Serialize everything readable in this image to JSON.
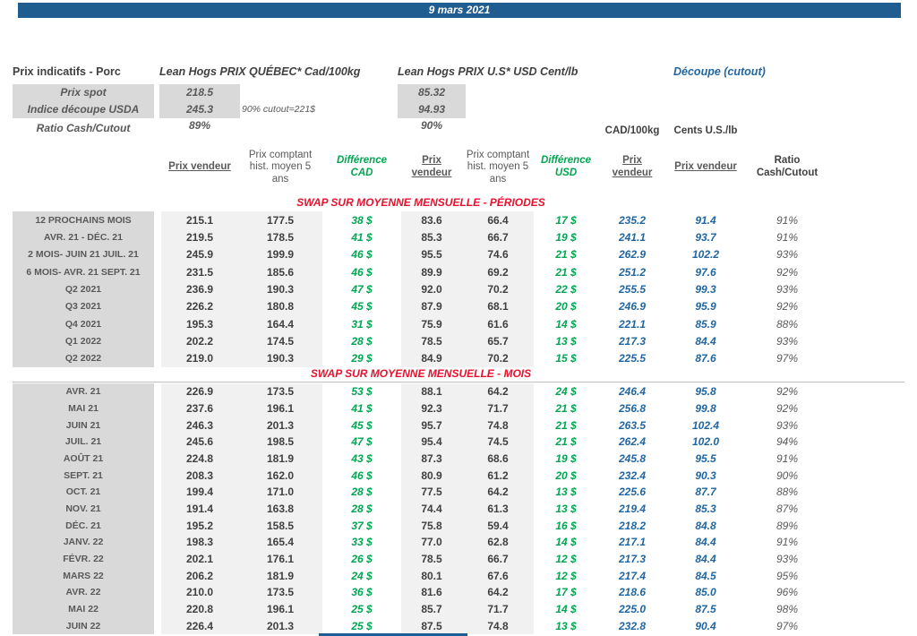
{
  "banner": {
    "date": "9 mars 2021"
  },
  "colors": {
    "banner_blue": "#1F5C8F",
    "diff_green": "#00A651",
    "cutout_blue": "#2166A0",
    "section_red": "#E8112D"
  },
  "summary": {
    "title": "Prix indicatifs - Porc",
    "quebec_title": "Lean Hogs PRIX QUÉBEC* Cad/100kg",
    "us_title": "Lean Hogs PRIX U.S* USD Cent/lb",
    "cutout_title": "Découpe (cutout)",
    "spot_label": "Prix spot",
    "spot_qc": "218.5",
    "spot_us": "85.32",
    "index_label": "Indice découpe USDA",
    "index_qc": "245.3",
    "index_us": "94.93",
    "cutout_note": "90% cutout=221$",
    "ratio_label": "Ratio Cash/Cutout",
    "ratio_qc": "89%",
    "ratio_us": "90%"
  },
  "table": {
    "group_headers": {
      "cad": "CAD/100kg",
      "us": "Cents U.S./lb"
    },
    "columns": [
      "Prix vendeur",
      "Prix comptant hist. moyen 5 ans",
      "Différence CAD",
      "Prix vendeur",
      "Prix comptant hist. moyen 5 ans",
      "Différence USD",
      "Prix vendeur",
      "Prix vendeur",
      "Ratio Cash/Cutout"
    ],
    "sections": [
      {
        "title": "SWAP SUR MOYENNE MENSUELLE - PÉRIODES",
        "rows": [
          [
            "12 PROCHAINS MOIS",
            "215.1",
            "177.5",
            "38 $",
            "83.6",
            "66.4",
            "17 $",
            "235.2",
            "91.4",
            "91%"
          ],
          [
            "AVR. 21 -  DÉC. 21",
            "219.5",
            "178.5",
            "41 $",
            "85.3",
            "66.7",
            "19 $",
            "241.1",
            "93.7",
            "91%"
          ],
          [
            "2 MOIS- JUIN 21 JUIL. 21",
            "245.9",
            "199.9",
            "46 $",
            "95.5",
            "74.6",
            "21 $",
            "262.9",
            "102.2",
            "93%"
          ],
          [
            "6 MOIS- AVR. 21 SEPT. 21",
            "231.5",
            "185.6",
            "46 $",
            "89.9",
            "69.2",
            "21 $",
            "251.2",
            "97.6",
            "92%"
          ],
          [
            "Q2 2021",
            "236.9",
            "190.3",
            "47 $",
            "92.0",
            "70.2",
            "22 $",
            "255.5",
            "99.3",
            "93%"
          ],
          [
            "Q3 2021",
            "226.2",
            "180.8",
            "45 $",
            "87.9",
            "68.1",
            "20 $",
            "246.9",
            "95.9",
            "92%"
          ],
          [
            "Q4 2021",
            "195.3",
            "164.4",
            "31 $",
            "75.9",
            "61.6",
            "14 $",
            "221.1",
            "85.9",
            "88%"
          ],
          [
            "Q1 2022",
            "202.2",
            "174.5",
            "28 $",
            "78.5",
            "65.7",
            "13 $",
            "217.3",
            "84.4",
            "93%"
          ],
          [
            "Q2 2022",
            "219.0",
            "190.3",
            "29 $",
            "84.9",
            "70.2",
            "15 $",
            "225.5",
            "87.6",
            "97%"
          ]
        ]
      },
      {
        "title": "SWAP SUR MOYENNE MENSUELLE - MOIS",
        "rows": [
          [
            "AVR. 21",
            "226.9",
            "173.5",
            "53 $",
            "88.1",
            "64.2",
            "24 $",
            "246.4",
            "95.8",
            "92%"
          ],
          [
            "MAI 21",
            "237.6",
            "196.1",
            "41 $",
            "92.3",
            "71.7",
            "21 $",
            "256.8",
            "99.8",
            "92%"
          ],
          [
            "JUIN 21",
            "246.3",
            "201.3",
            "45 $",
            "95.7",
            "74.8",
            "21 $",
            "263.5",
            "102.4",
            "93%"
          ],
          [
            "JUIL. 21",
            "245.6",
            "198.5",
            "47 $",
            "95.4",
            "74.5",
            "21 $",
            "262.4",
            "102.0",
            "94%"
          ],
          [
            "AOÛT 21",
            "224.8",
            "181.9",
            "43 $",
            "87.3",
            "68.6",
            "19 $",
            "245.8",
            "95.5",
            "91%"
          ],
          [
            "SEPT. 21",
            "208.3",
            "162.0",
            "46 $",
            "80.9",
            "61.2",
            "20 $",
            "232.4",
            "90.3",
            "90%"
          ],
          [
            "OCT. 21",
            "199.4",
            "171.0",
            "28 $",
            "77.5",
            "64.2",
            "13 $",
            "225.6",
            "87.7",
            "88%"
          ],
          [
            "NOV. 21",
            "191.4",
            "163.8",
            "28 $",
            "74.4",
            "61.3",
            "13 $",
            "219.4",
            "85.3",
            "87%"
          ],
          [
            "DÉC. 21",
            "195.2",
            "158.5",
            "37 $",
            "75.8",
            "59.4",
            "16 $",
            "218.2",
            "84.8",
            "89%"
          ],
          [
            "JANV. 22",
            "198.3",
            "165.4",
            "33 $",
            "77.0",
            "62.8",
            "14 $",
            "217.1",
            "84.4",
            "91%"
          ],
          [
            "FÉVR. 22",
            "202.1",
            "176.1",
            "26 $",
            "78.5",
            "66.7",
            "12 $",
            "217.3",
            "84.4",
            "93%"
          ],
          [
            "MARS 22",
            "206.2",
            "181.9",
            "24 $",
            "80.1",
            "67.6",
            "12 $",
            "217.4",
            "84.5",
            "95%"
          ],
          [
            "AVR. 22",
            "210.0",
            "173.5",
            "36 $",
            "81.6",
            "64.2",
            "17 $",
            "218.6",
            "85.0",
            "96%"
          ],
          [
            "MAI 22",
            "220.8",
            "196.1",
            "25 $",
            "85.7",
            "71.7",
            "14 $",
            "225.0",
            "87.5",
            "98%"
          ],
          [
            "JUIN 22",
            "226.4",
            "201.3",
            "25 $",
            "87.5",
            "74.8",
            "13 $",
            "232.8",
            "90.4",
            "97%"
          ]
        ]
      }
    ]
  }
}
